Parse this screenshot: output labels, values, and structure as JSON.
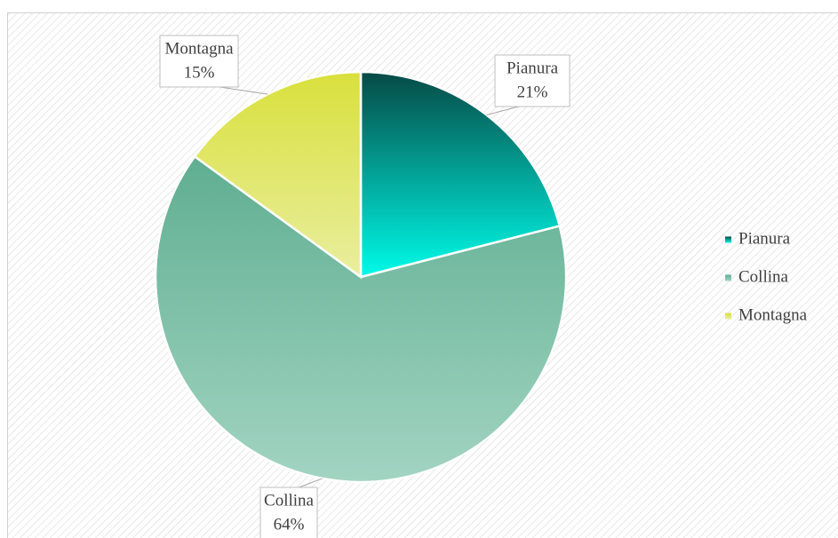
{
  "chart_data": {
    "type": "pie",
    "categories": [
      "Pianura",
      "Collina",
      "Montagna"
    ],
    "values": [
      21,
      64,
      15
    ],
    "value_labels": [
      "21%",
      "64%",
      "15%"
    ],
    "colors": [
      [
        "#064a45",
        "#00fbe9"
      ],
      [
        "#5fae92",
        "#a2d4c2"
      ],
      [
        "#d9e03c",
        "#e9ee9f"
      ]
    ],
    "legend": "right"
  }
}
